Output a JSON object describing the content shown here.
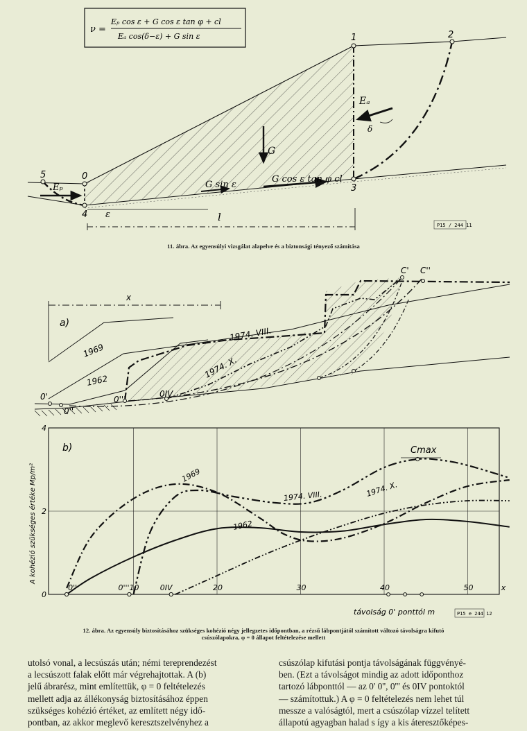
{
  "figure11": {
    "formula_lhs": "ν =",
    "formula_num": "Eₚ cos ε + G cos ε tan φ + cl",
    "formula_den": "Eₐ cos(δ−ε) + G sin ε",
    "points": [
      "0",
      "1",
      "2",
      "3",
      "4",
      "5"
    ],
    "labels": {
      "Ep": "Eₚ",
      "Ea": "Eₐ",
      "delta": "δ",
      "G": "G",
      "Gsin": "G sin ε",
      "Gcos": "G cos ε tan φ cl",
      "eps": "ε",
      "l": "l"
    },
    "stamp": "P15 / 244 11",
    "caption": "11. ábra. Az egyensúlyi vizsgálat alapelve és a biztonsági tényező számítása"
  },
  "figure12": {
    "panel_a": {
      "tag": "a)",
      "x_label": "x",
      "years": [
        "1969",
        "1962",
        "1974. VIII.",
        "1974. X."
      ],
      "points": [
        "0'",
        "0''",
        "0'''",
        "0IV",
        "C'",
        "C''"
      ]
    },
    "panel_b": {
      "tag": "b)",
      "cmax": "Cmax",
      "stamp": "P15 e 244 12"
    },
    "caption_line1": "12. ábra. Az egyensúly biztosításához szükséges kohézió négy jellegzetes időpontban, a rézsű lábpontjától számított változó távolságra kifutó",
    "caption_line2": "csúszólapokra, φ = 0 állapot feltételezése mellett"
  },
  "chart_data": {
    "type": "line",
    "title": "",
    "xlabel": "távolság 0' ponttól  m",
    "ylabel": "A kohézió szükséges értéke  Mp/m²",
    "xlim": [
      0,
      55
    ],
    "ylim": [
      0,
      4
    ],
    "xticks": [
      "10",
      "20",
      "30",
      "40",
      "50",
      "x"
    ],
    "yticks": [
      "0",
      "2",
      "4"
    ],
    "point_labels": [
      "0''",
      "0'''",
      "0IV"
    ],
    "series": [
      {
        "name": "1969",
        "x": [
          2,
          5,
          10,
          15,
          20,
          25,
          28,
          31,
          35,
          40,
          45,
          50,
          55
        ],
        "y": [
          0.15,
          1.4,
          2.3,
          2.65,
          2.45,
          1.85,
          1.45,
          1.28,
          1.35,
          1.7,
          2.2,
          2.6,
          2.75
        ]
      },
      {
        "name": "1962",
        "x": [
          2,
          5,
          10,
          15,
          20,
          25,
          30,
          35,
          40,
          45,
          50,
          55
        ],
        "y": [
          0.0,
          0.4,
          0.9,
          1.3,
          1.58,
          1.6,
          1.5,
          1.52,
          1.68,
          1.8,
          1.75,
          1.62
        ]
      },
      {
        "name": "1974. VIII.",
        "x": [
          10,
          12,
          15,
          18,
          22,
          27,
          31,
          35,
          40,
          44,
          47,
          50,
          55
        ],
        "y": [
          0.0,
          1.5,
          2.35,
          2.5,
          2.35,
          2.2,
          2.2,
          2.5,
          3.05,
          3.25,
          3.22,
          3.1,
          2.8
        ]
      },
      {
        "name": "1974. X.",
        "x": [
          15,
          20,
          25,
          30,
          35,
          40,
          45,
          50,
          55
        ],
        "y": [
          0.0,
          0.45,
          0.9,
          1.3,
          1.65,
          1.95,
          2.15,
          2.25,
          2.25
        ]
      }
    ]
  },
  "body_text": {
    "left": [
      "utolsó vonal, a lecsúszás után; némi tereprendezést",
      "a lecsúszott falak előtt már végrehajtottak. A (b)",
      "jelű ábrarész, mint említettük, φ = 0 feltételezés",
      "mellett adja az állékonyság biztosításához éppen",
      "szükséges kohézió értéket, az említett négy idő-",
      "pontban, az akkor meglevő keresztszelvényhez a"
    ],
    "right": [
      "csúszólap kifutási pontja távolságának függvényé-",
      "ben. (Ezt a távolságot mindig az adott időponthoz",
      "tartozó lábponttól — az 0' 0'', 0''' és 0IV pontoktól",
      "— számítottuk.) A φ = 0 feltételezés nem lehet túl",
      "messze a valóságtól, mert a csúszólap vízzel telített",
      "állapotú agyagban halad s így a kis áteresztőképes-"
    ]
  }
}
